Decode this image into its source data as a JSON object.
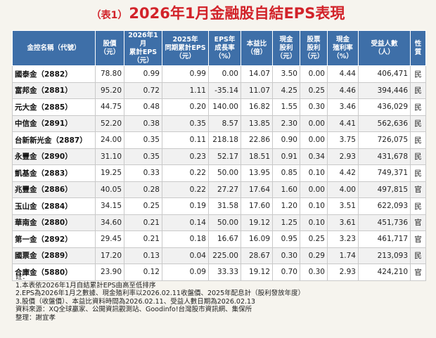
{
  "title": {
    "tag": "（表1）",
    "text": "2026年1月金融股自結EPS表現"
  },
  "columns": [
    {
      "l1": "金控名稱（代號）",
      "l2": ""
    },
    {
      "l1": "股價",
      "l2": "（元）"
    },
    {
      "l1": "2026年1月",
      "l2": "累計EPS",
      "l3": "（元）"
    },
    {
      "l1": "2025年",
      "l2": "同期累計EPS",
      "l3": "（元）"
    },
    {
      "l1": "EPS年",
      "l2": "成長率",
      "l3": "（%）"
    },
    {
      "l1": "本益比",
      "l2": "（倍）"
    },
    {
      "l1": "現金",
      "l2": "股利",
      "l3": "（元）"
    },
    {
      "l1": "股票",
      "l2": "股利",
      "l3": "（元）"
    },
    {
      "l1": "現金",
      "l2": "殖利率",
      "l3": "（%）"
    },
    {
      "l1": "受益人數",
      "l2": "（人）"
    },
    {
      "l1": "性",
      "l2": "質"
    }
  ],
  "rows": [
    [
      "國泰金（2882）",
      "78.80",
      "0.99",
      "0.99",
      "0.00",
      "14.07",
      "3.50",
      "0.00",
      "4.44",
      "406,471",
      "民"
    ],
    [
      "富邦金（2881）",
      "95.20",
      "0.72",
      "1.11",
      "-35.14",
      "11.07",
      "4.25",
      "0.25",
      "4.46",
      "394,446",
      "民"
    ],
    [
      "元大金（2885）",
      "44.75",
      "0.48",
      "0.20",
      "140.00",
      "16.82",
      "1.55",
      "0.30",
      "3.46",
      "436,029",
      "民"
    ],
    [
      "中信金（2891）",
      "52.20",
      "0.38",
      "0.35",
      "8.57",
      "13.85",
      "2.30",
      "0.00",
      "4.41",
      "562,636",
      "民"
    ],
    [
      "台新新光金（2887）",
      "24.00",
      "0.35",
      "0.11",
      "218.18",
      "22.86",
      "0.90",
      "0.00",
      "3.75",
      "726,075",
      "民"
    ],
    [
      "永豐金（2890）",
      "31.10",
      "0.35",
      "0.23",
      "52.17",
      "18.51",
      "0.91",
      "0.34",
      "2.93",
      "431,678",
      "民"
    ],
    [
      "凱基金（2883）",
      "19.25",
      "0.33",
      "0.22",
      "50.00",
      "13.95",
      "0.85",
      "0.10",
      "4.42",
      "749,371",
      "民"
    ],
    [
      "兆豐金（2886）",
      "40.05",
      "0.28",
      "0.22",
      "27.27",
      "17.64",
      "1.60",
      "0.00",
      "4.00",
      "497,815",
      "官"
    ],
    [
      "玉山金（2884）",
      "34.15",
      "0.25",
      "0.19",
      "31.58",
      "17.60",
      "1.20",
      "0.10",
      "3.51",
      "622,093",
      "民"
    ],
    [
      "華南金（2880）",
      "34.60",
      "0.21",
      "0.14",
      "50.00",
      "19.12",
      "1.25",
      "0.10",
      "3.61",
      "451,736",
      "官"
    ],
    [
      "第一金（2892）",
      "29.45",
      "0.21",
      "0.18",
      "16.67",
      "16.09",
      "0.95",
      "0.25",
      "3.23",
      "461,717",
      "官"
    ],
    [
      "國票金（2889）",
      "17.20",
      "0.13",
      "0.04",
      "225.00",
      "28.67",
      "0.30",
      "0.29",
      "1.74",
      "213,093",
      "民"
    ],
    [
      "合庫金（5880）",
      "23.90",
      "0.12",
      "0.09",
      "33.33",
      "19.12",
      "0.70",
      "0.30",
      "2.93",
      "424,210",
      "官"
    ]
  ],
  "notes": [
    "註：",
    "1.本表依2026年1月自結累計EPS由高至低排序",
    "2.EPS為2026年1月之數據、現金殖利率以2026.02.11收盤價、2025年配息計（股利發放年度）",
    "3.股價（收盤價）、本益比資料時間為2026.02.11、受益人數日期為2026.02.13",
    "資料來源：XQ全球贏家、公開資訊觀測站、Goodinfo!台灣股市資訊網、集保所",
    "整理：謝宜孝"
  ]
}
